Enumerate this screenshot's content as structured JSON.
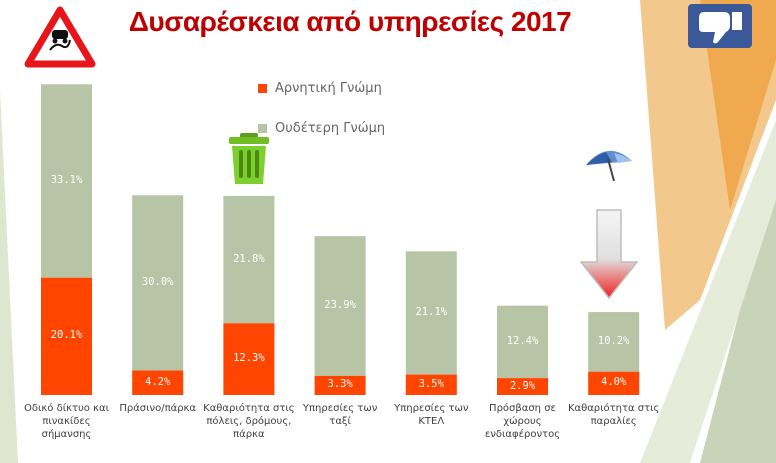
{
  "chart_data": {
    "type": "bar",
    "stacked": true,
    "title": "Δυσαρέσκεια από υπηρεσίες 2017",
    "categories": [
      "Οδικό δίκτυο και πινακίδες σήμανσης",
      "Πράσινο/πάρκα",
      "Καθαριότητα στις πόλεις, δρόμους, πάρκα",
      "Υπηρεσίες των ταξί",
      "Υπηρεσίες των ΚΤΕΛ",
      "Πρόσβαση σε χώρους ενδιαφέροντος",
      "Καθαριότητα στις παραλίες"
    ],
    "series": [
      {
        "name": "Αρνητική Γνώμη",
        "color": "#ff4500",
        "values": [
          20.1,
          4.2,
          12.3,
          3.3,
          3.5,
          2.9,
          4.0
        ],
        "labels": [
          "20.1%",
          "4.2%",
          "12.3%",
          "3.3%",
          "3.5%",
          "2.9%",
          "4.0%"
        ]
      },
      {
        "name": "Ουδέτερη Γνώμη",
        "color": "#b8c4a6",
        "values": [
          33.1,
          30.0,
          21.8,
          23.9,
          21.1,
          12.4,
          10.2
        ],
        "labels": [
          "33.1%",
          "30.0%",
          "21.8%",
          "23.9%",
          "21.1%",
          "12.4%",
          "10.2%"
        ]
      }
    ],
    "ylim": [
      0,
      55
    ],
    "grid": false,
    "legend": "top-center",
    "icons": [
      "slippery-road-sign-icon",
      "trash-can-icon",
      "beach-umbrella-icon",
      "thumbs-down-icon",
      "down-arrow-icon"
    ]
  }
}
